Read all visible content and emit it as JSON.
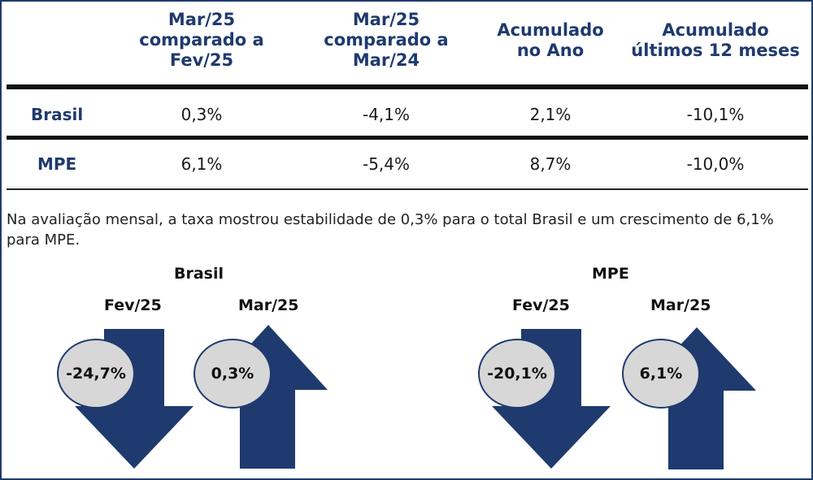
{
  "table": {
    "headers": [
      [
        "Mar/25",
        "comparado a",
        "Fev/25"
      ],
      [
        "Mar/25",
        "comparado a",
        "Mar/24"
      ],
      [
        "Acumulado",
        "no Ano"
      ],
      [
        "Acumulado",
        "últimos 12 meses"
      ]
    ],
    "rows": [
      {
        "label": "Brasil",
        "values": [
          "0,3%",
          "-4,1%",
          "2,1%",
          "-10,1%"
        ]
      },
      {
        "label": "MPE",
        "values": [
          "6,1%",
          "-5,4%",
          "8,7%",
          "-10,0%"
        ]
      }
    ]
  },
  "paragraph": "Na avaliação mensal, a taxa mostrou estabilidade de 0,3% para o total Brasil e um crescimento de 6,1% para MPE.",
  "groups": [
    {
      "title": "Brasil",
      "items": [
        {
          "period": "Fev/25",
          "value": "-24,7%",
          "direction": "down"
        },
        {
          "period": "Mar/25",
          "value": "0,3%",
          "direction": "up"
        }
      ]
    },
    {
      "title": "MPE",
      "items": [
        {
          "period": "Fev/25",
          "value": "-20,1%",
          "direction": "down"
        },
        {
          "period": "Mar/25",
          "value": "6,1%",
          "direction": "up"
        }
      ]
    }
  ],
  "colors": {
    "arrow": "#1f3a6e",
    "circle_fill": "#d7d7d7",
    "header_text": "#1f3a6e"
  }
}
